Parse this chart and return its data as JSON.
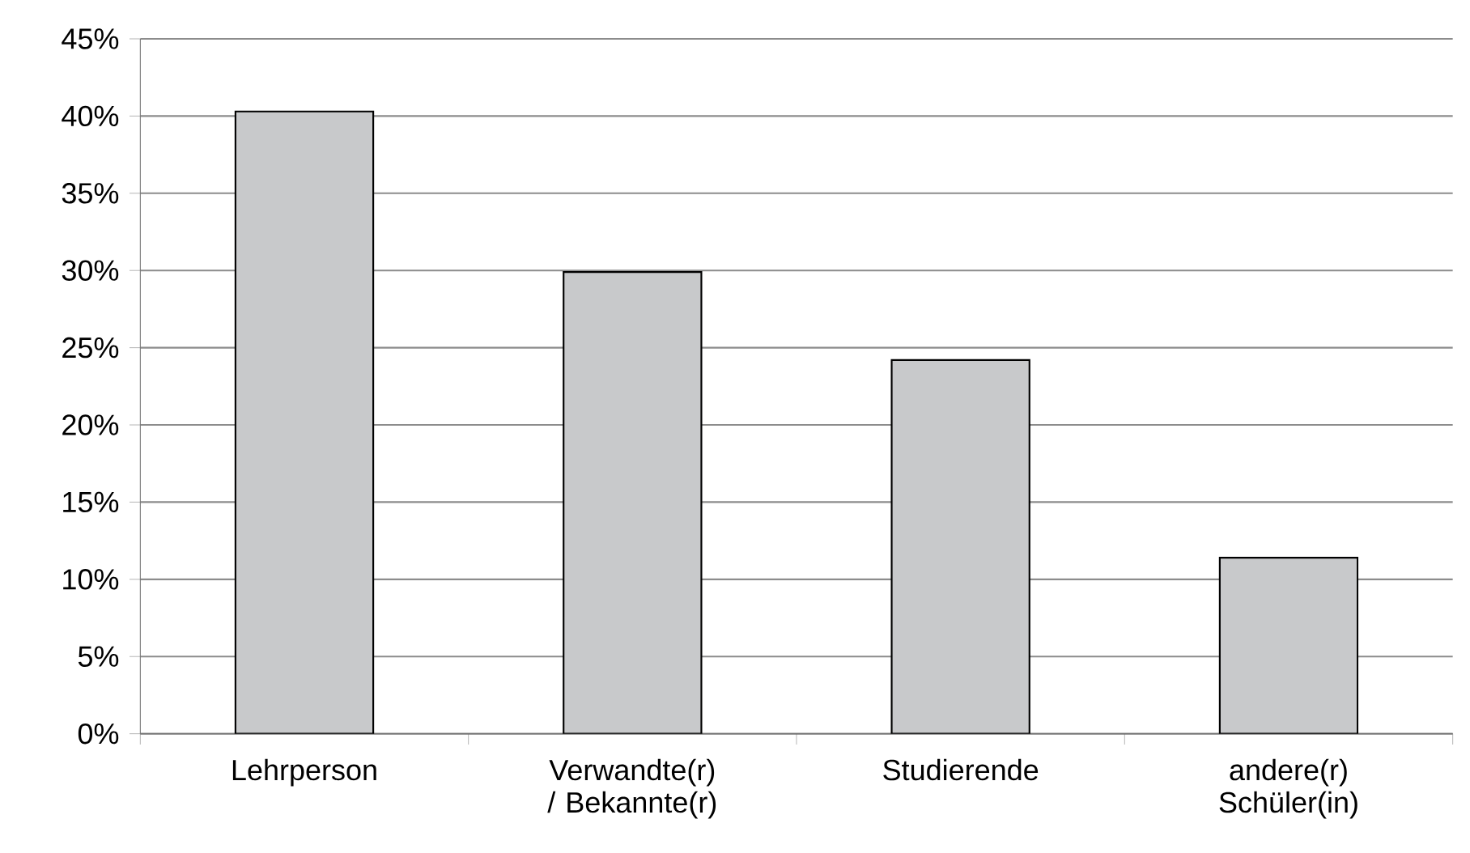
{
  "chart_data": {
    "type": "bar",
    "categories": [
      "Lehrperson",
      "Verwandte(r) / Bekannte(r)",
      "Studierende",
      "andere(r) Schüler(in)"
    ],
    "values": [
      40.3,
      29.9,
      24.2,
      11.4
    ],
    "color": "#c8c9cb",
    "ylim": [
      0,
      45
    ],
    "yticks": [
      {
        "value": 0,
        "label": "0%"
      },
      {
        "value": 5,
        "label": "5%"
      },
      {
        "value": 10,
        "label": "10%"
      },
      {
        "value": 15,
        "label": "15%"
      },
      {
        "value": 20,
        "label": "20%"
      },
      {
        "value": 25,
        "label": "25%"
      },
      {
        "value": 30,
        "label": "30%"
      },
      {
        "value": 35,
        "label": "35%"
      },
      {
        "value": 40,
        "label": "40%"
      },
      {
        "value": 45,
        "label": "45%"
      }
    ],
    "grid": "y"
  }
}
